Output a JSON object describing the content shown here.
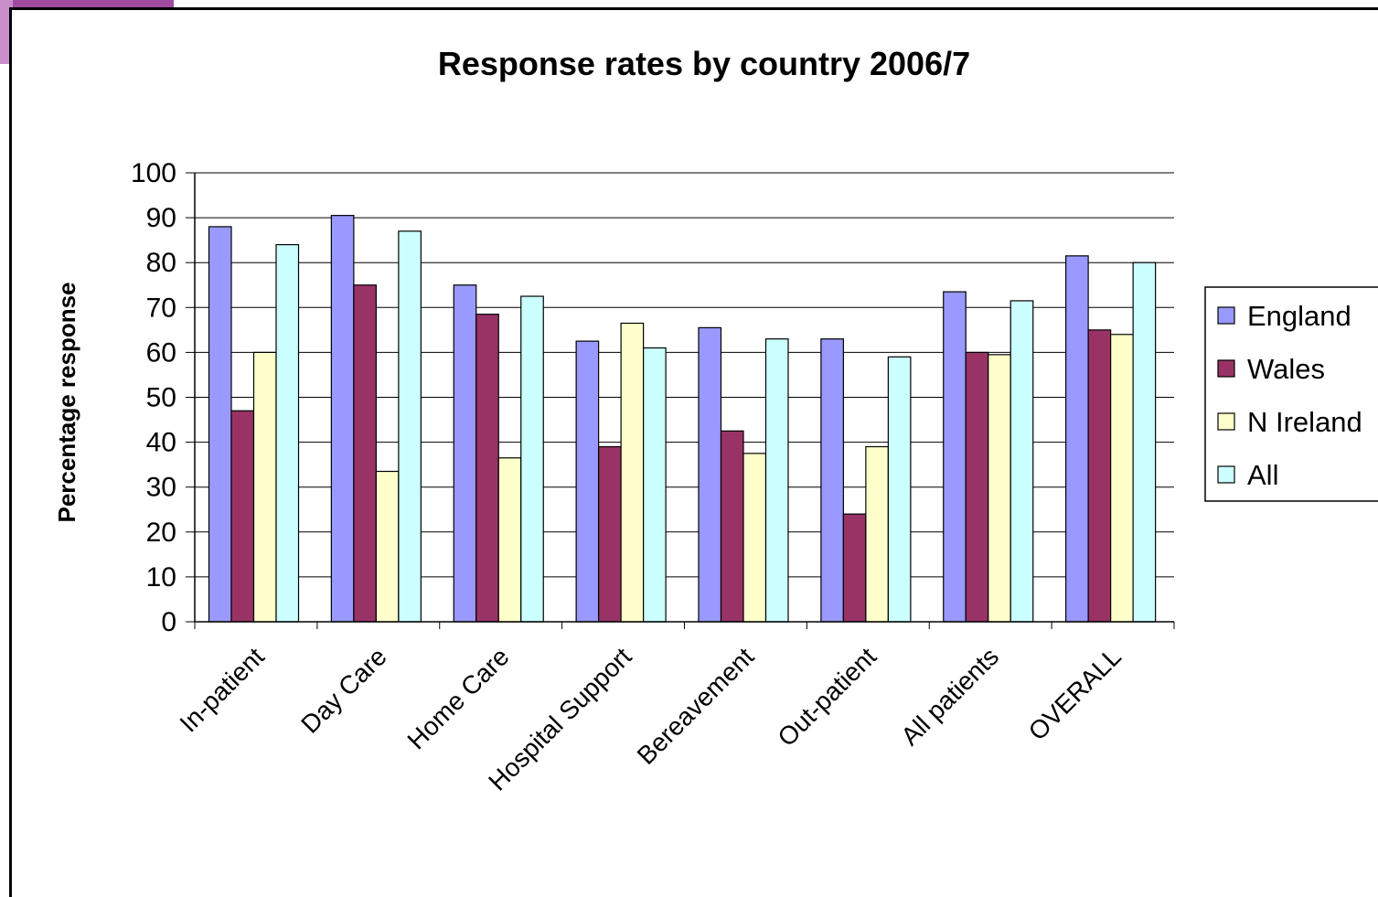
{
  "chart_data": {
    "type": "bar",
    "title": "Response rates by country 2006/7",
    "xlabel": "",
    "ylabel": "Percentage response",
    "ylim": [
      0,
      100
    ],
    "yticks": [
      0,
      10,
      20,
      30,
      40,
      50,
      60,
      70,
      80,
      90,
      100
    ],
    "grid": true,
    "legend_position": "right",
    "categories": [
      "In-patient",
      "Day Care",
      "Home Care",
      "Hospital Support",
      "Bereavement",
      "Out-patient",
      "All patients",
      "OVERALL"
    ],
    "series": [
      {
        "name": "England",
        "color": "#9999ff",
        "values": [
          88,
          90.5,
          75,
          62.5,
          65.5,
          63,
          73.5,
          81.5
        ]
      },
      {
        "name": "Wales",
        "color": "#993366",
        "values": [
          47,
          75,
          68.5,
          39,
          42.5,
          24,
          60,
          65
        ]
      },
      {
        "name": "N Ireland",
        "color": "#ffffcc",
        "values": [
          60,
          33.5,
          36.5,
          66.5,
          37.5,
          39,
          59.5,
          64
        ]
      },
      {
        "name": "All",
        "color": "#ccffff",
        "values": [
          84,
          87,
          72.5,
          61,
          63,
          59,
          71.5,
          80
        ]
      }
    ]
  }
}
